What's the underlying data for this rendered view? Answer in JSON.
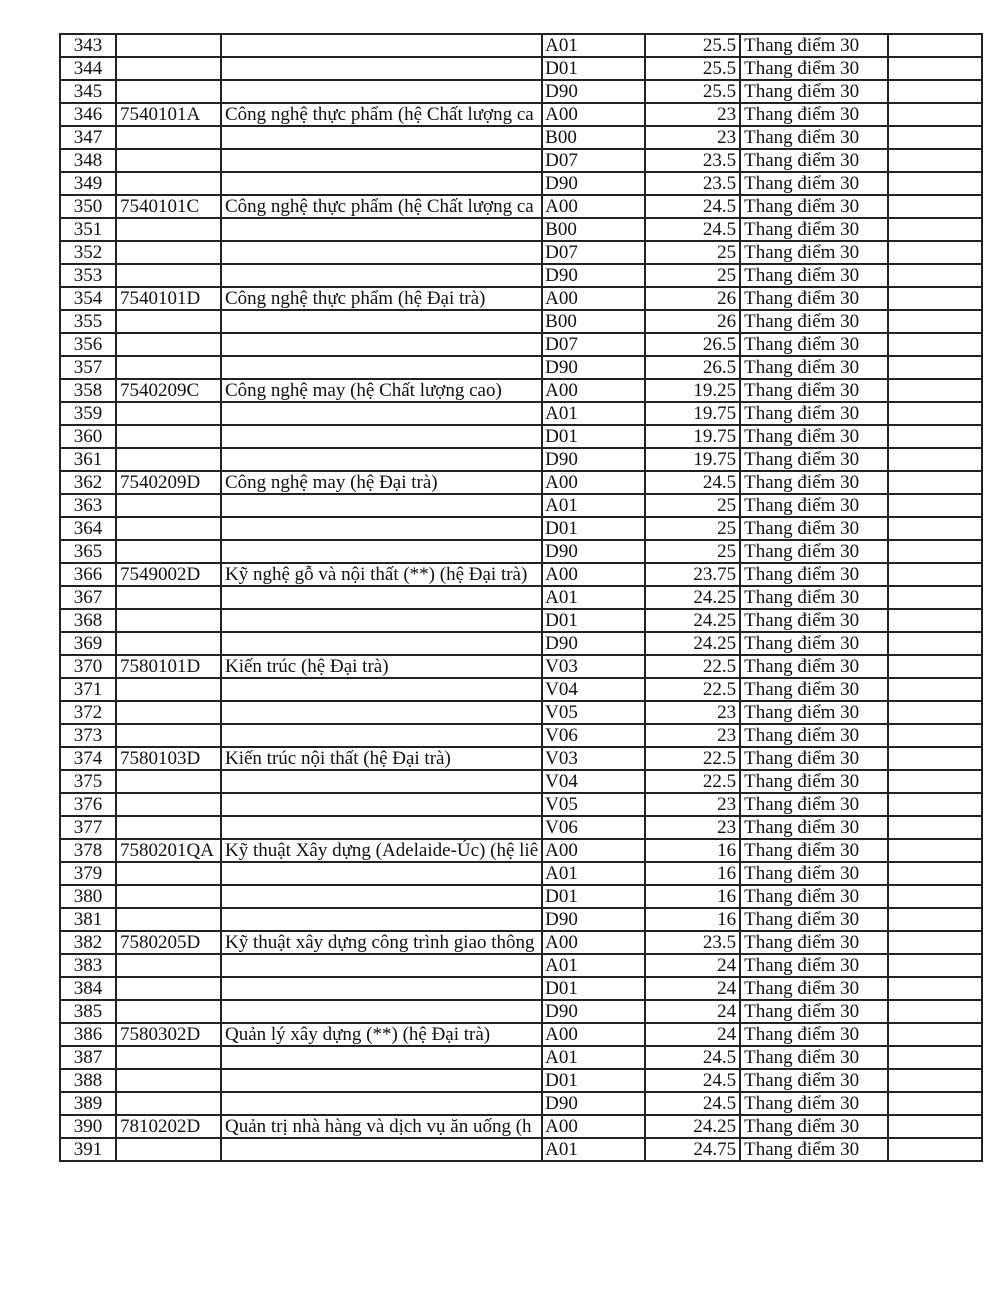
{
  "scale_label": "Thang điểm 30",
  "rows": [
    [
      "343",
      "",
      "",
      "A01",
      "25.5"
    ],
    [
      "344",
      "",
      "",
      "D01",
      "25.5"
    ],
    [
      "345",
      "",
      "",
      "D90",
      "25.5"
    ],
    [
      "346",
      "7540101A",
      "Công nghệ thực phẩm (hệ Chất lượng ca",
      "A00",
      "23"
    ],
    [
      "347",
      "",
      "",
      "B00",
      "23"
    ],
    [
      "348",
      "",
      "",
      "D07",
      "23.5"
    ],
    [
      "349",
      "",
      "",
      "D90",
      "23.5"
    ],
    [
      "350",
      "7540101C",
      "Công nghệ thực phẩm (hệ Chất lượng ca",
      "A00",
      "24.5"
    ],
    [
      "351",
      "",
      "",
      "B00",
      "24.5"
    ],
    [
      "352",
      "",
      "",
      "D07",
      "25"
    ],
    [
      "353",
      "",
      "",
      "D90",
      "25"
    ],
    [
      "354",
      "7540101D",
      "Công nghệ thực phẩm (hệ Đại trà)",
      "A00",
      "26"
    ],
    [
      "355",
      "",
      "",
      "B00",
      "26"
    ],
    [
      "356",
      "",
      "",
      "D07",
      "26.5"
    ],
    [
      "357",
      "",
      "",
      "D90",
      "26.5"
    ],
    [
      "358",
      "7540209C",
      "Công nghệ may (hệ Chất lượng cao)",
      "A00",
      "19.25"
    ],
    [
      "359",
      "",
      "",
      "A01",
      "19.75"
    ],
    [
      "360",
      "",
      "",
      "D01",
      "19.75"
    ],
    [
      "361",
      "",
      "",
      "D90",
      "19.75"
    ],
    [
      "362",
      "7540209D",
      "Công nghệ may (hệ Đại trà)",
      "A00",
      "24.5"
    ],
    [
      "363",
      "",
      "",
      "A01",
      "25"
    ],
    [
      "364",
      "",
      "",
      "D01",
      "25"
    ],
    [
      "365",
      "",
      "",
      "D90",
      "25"
    ],
    [
      "366",
      "7549002D",
      "Kỹ nghệ gỗ và nội thất (**) (hệ Đại trà)",
      "A00",
      "23.75"
    ],
    [
      "367",
      "",
      "",
      "A01",
      "24.25"
    ],
    [
      "368",
      "",
      "",
      "D01",
      "24.25"
    ],
    [
      "369",
      "",
      "",
      "D90",
      "24.25"
    ],
    [
      "370",
      "7580101D",
      "Kiến trúc (hệ Đại trà)",
      "V03",
      "22.5"
    ],
    [
      "371",
      "",
      "",
      "V04",
      "22.5"
    ],
    [
      "372",
      "",
      "",
      "V05",
      "23"
    ],
    [
      "373",
      "",
      "",
      "V06",
      "23"
    ],
    [
      "374",
      "7580103D",
      "Kiến trúc nội thất (hệ Đại trà)",
      "V03",
      "22.5"
    ],
    [
      "375",
      "",
      "",
      "V04",
      "22.5"
    ],
    [
      "376",
      "",
      "",
      "V05",
      "23"
    ],
    [
      "377",
      "",
      "",
      "V06",
      "23"
    ],
    [
      "378",
      "7580201QA",
      "Kỹ thuật Xây dựng (Adelaide-Úc) (hệ liê",
      "A00",
      "16"
    ],
    [
      "379",
      "",
      "",
      "A01",
      "16"
    ],
    [
      "380",
      "",
      "",
      "D01",
      "16"
    ],
    [
      "381",
      "",
      "",
      "D90",
      "16"
    ],
    [
      "382",
      "7580205D",
      "Kỹ thuật xây dựng công trình giao thông",
      "A00",
      "23.5"
    ],
    [
      "383",
      "",
      "",
      "A01",
      "24"
    ],
    [
      "384",
      "",
      "",
      "D01",
      "24"
    ],
    [
      "385",
      "",
      "",
      "D90",
      "24"
    ],
    [
      "386",
      "7580302D",
      "Quản lý xây dựng (**) (hệ Đại trà)",
      "A00",
      "24"
    ],
    [
      "387",
      "",
      "",
      "A01",
      "24.5"
    ],
    [
      "388",
      "",
      "",
      "D01",
      "24.5"
    ],
    [
      "389",
      "",
      "",
      "D90",
      "24.5"
    ],
    [
      "390",
      "7810202D",
      "Quản trị nhà hàng và dịch vụ ăn uống (h",
      "A00",
      "24.25"
    ],
    [
      "391",
      "",
      "",
      "A01",
      "24.75"
    ]
  ]
}
